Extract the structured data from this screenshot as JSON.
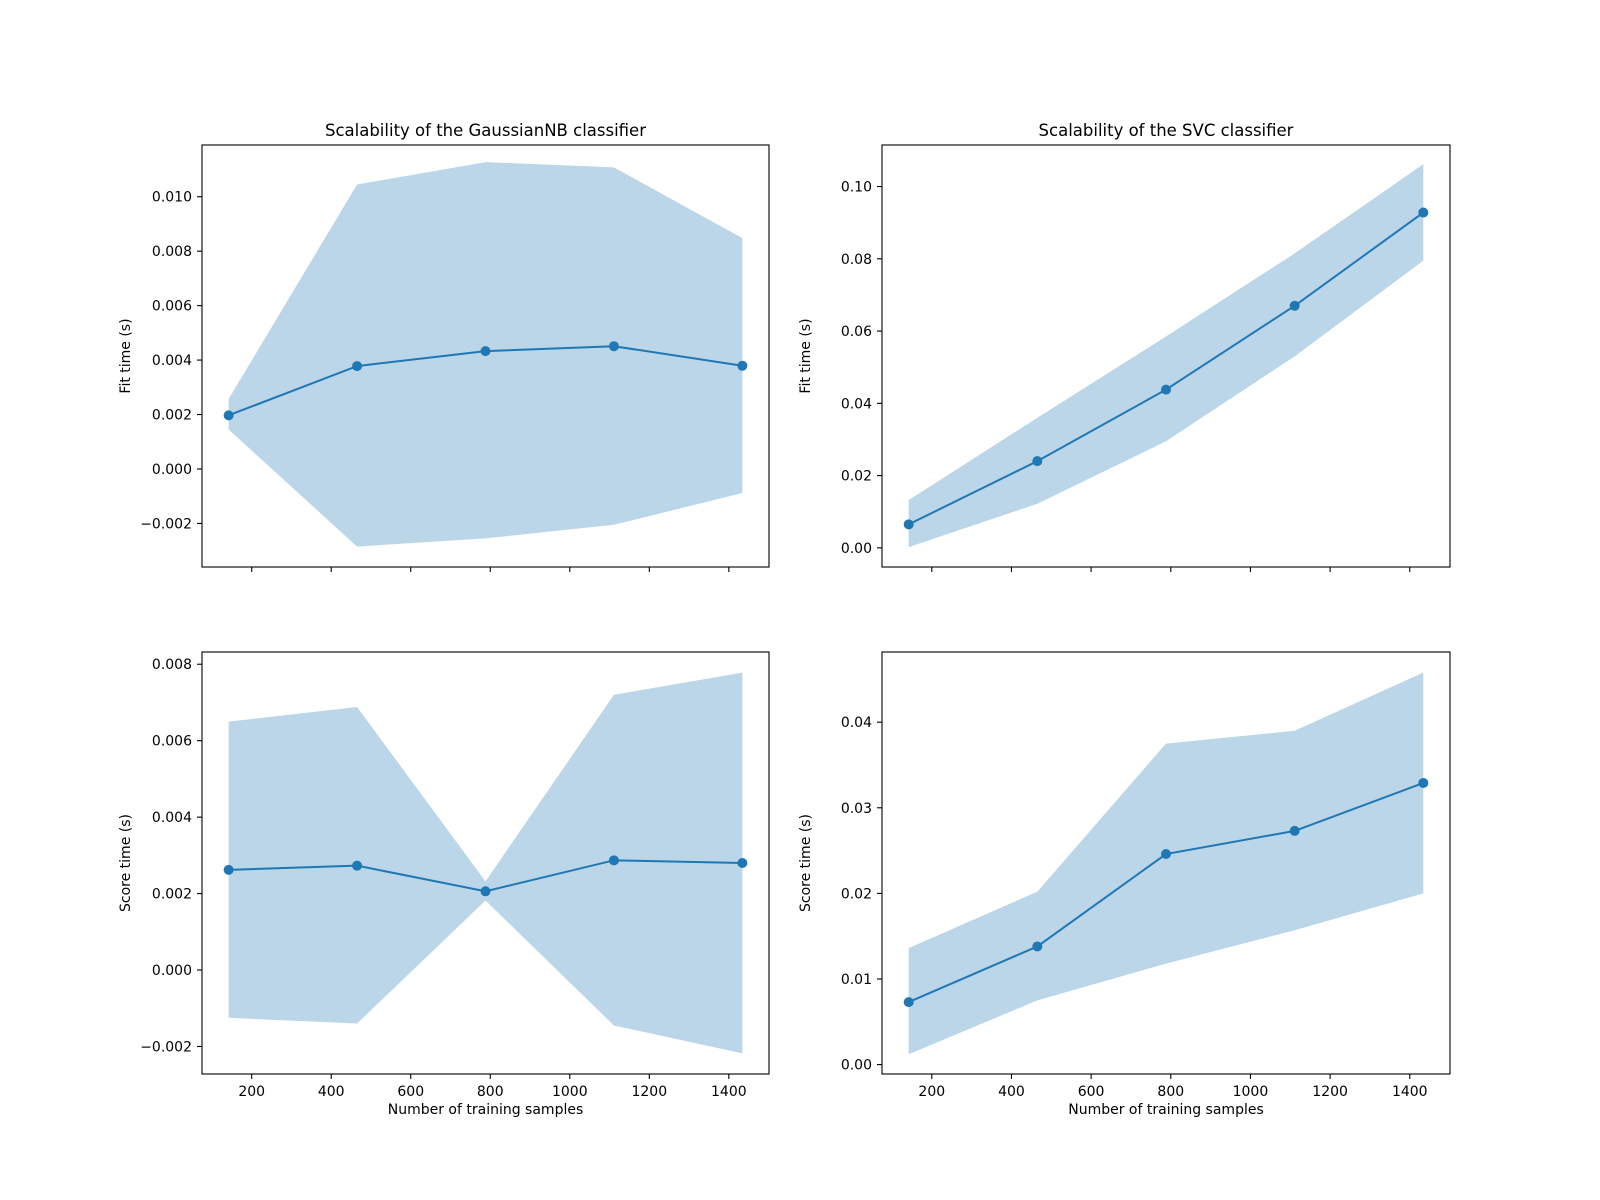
{
  "chart_data": [
    {
      "type": "line",
      "title": "Scalability of the GaussianNB classifier",
      "xlabel": "",
      "ylabel": "Fit time (s)",
      "x": [
        142,
        465,
        788,
        1111,
        1434
      ],
      "series": [
        {
          "values": [
            0.00197,
            0.00378,
            0.00433,
            0.00451,
            0.00379
          ],
          "lower": [
            0.00145,
            -0.00285,
            -0.00255,
            -0.00205,
            -0.00088
          ],
          "upper": [
            0.00257,
            0.01045,
            0.01127,
            0.01108,
            0.00848
          ]
        }
      ],
      "xlim": [
        75,
        1501
      ],
      "ylim": [
        -0.0036,
        0.0119
      ],
      "xticks": [
        200,
        400,
        600,
        800,
        1000,
        1200,
        1400
      ],
      "yticks": [
        -0.002,
        0.0,
        0.002,
        0.004,
        0.006,
        0.008,
        0.01
      ],
      "yticklabels": [
        "−0.002",
        "0.000",
        "0.002",
        "0.004",
        "0.006",
        "0.008",
        "0.010"
      ],
      "show_xticklabels": false,
      "color": "#1f77b4",
      "band_color": "#1f77b4",
      "band_alpha": 0.3,
      "grid": false
    },
    {
      "type": "line",
      "title": "Scalability of the SVC classifier",
      "xlabel": "",
      "ylabel": "Fit time (s)",
      "x": [
        142,
        465,
        788,
        1111,
        1434
      ],
      "series": [
        {
          "values": [
            0.0065,
            0.024,
            0.0438,
            0.067,
            0.0928
          ],
          "lower": [
            0.0002,
            0.0122,
            0.0295,
            0.053,
            0.0795
          ],
          "upper": [
            0.0132,
            0.036,
            0.0585,
            0.0815,
            0.1062
          ]
        }
      ],
      "xlim": [
        75,
        1501
      ],
      "ylim": [
        -0.0053,
        0.1115
      ],
      "xticks": [
        200,
        400,
        600,
        800,
        1000,
        1200,
        1400
      ],
      "yticks": [
        0.0,
        0.02,
        0.04,
        0.06,
        0.08,
        0.1
      ],
      "yticklabels": [
        "0.00",
        "0.02",
        "0.04",
        "0.06",
        "0.08",
        "0.10"
      ],
      "show_xticklabels": false,
      "color": "#1f77b4",
      "band_color": "#1f77b4",
      "band_alpha": 0.3,
      "grid": false
    },
    {
      "type": "line",
      "title": "",
      "xlabel": "Number of training samples",
      "ylabel": "Score time (s)",
      "x": [
        142,
        465,
        788,
        1111,
        1434
      ],
      "series": [
        {
          "values": [
            0.00262,
            0.00273,
            0.00206,
            0.00287,
            0.0028
          ],
          "lower": [
            -0.00125,
            -0.0014,
            0.00182,
            -0.00145,
            -0.00218
          ],
          "upper": [
            0.0065,
            0.00688,
            0.00232,
            0.0072,
            0.00778
          ]
        }
      ],
      "xlim": [
        75,
        1501
      ],
      "ylim": [
        -0.00272,
        0.00832
      ],
      "xticks": [
        200,
        400,
        600,
        800,
        1000,
        1200,
        1400
      ],
      "xticklabels": [
        "200",
        "400",
        "600",
        "800",
        "1000",
        "1200",
        "1400"
      ],
      "yticks": [
        -0.002,
        0.0,
        0.002,
        0.004,
        0.006,
        0.008
      ],
      "yticklabels": [
        "−0.002",
        "0.000",
        "0.002",
        "0.004",
        "0.006",
        "0.008"
      ],
      "show_xticklabels": true,
      "color": "#1f77b4",
      "band_color": "#1f77b4",
      "band_alpha": 0.3,
      "grid": false
    },
    {
      "type": "line",
      "title": "",
      "xlabel": "Number of training samples",
      "ylabel": "Score time (s)",
      "x": [
        142,
        465,
        788,
        1111,
        1434
      ],
      "series": [
        {
          "values": [
            0.0073,
            0.0138,
            0.0246,
            0.0273,
            0.0329
          ],
          "lower": [
            0.0012,
            0.0075,
            0.0118,
            0.0157,
            0.02
          ],
          "upper": [
            0.0136,
            0.0202,
            0.0375,
            0.039,
            0.0458
          ]
        }
      ],
      "xlim": [
        75,
        1501
      ],
      "ylim": [
        -0.0011,
        0.0482
      ],
      "xticks": [
        200,
        400,
        600,
        800,
        1000,
        1200,
        1400
      ],
      "xticklabels": [
        "200",
        "400",
        "600",
        "800",
        "1000",
        "1200",
        "1400"
      ],
      "yticks": [
        0.0,
        0.01,
        0.02,
        0.03,
        0.04
      ],
      "yticklabels": [
        "0.00",
        "0.01",
        "0.02",
        "0.03",
        "0.04"
      ],
      "show_xticklabels": true,
      "color": "#1f77b4",
      "band_color": "#1f77b4",
      "band_alpha": 0.3,
      "grid": false
    }
  ]
}
